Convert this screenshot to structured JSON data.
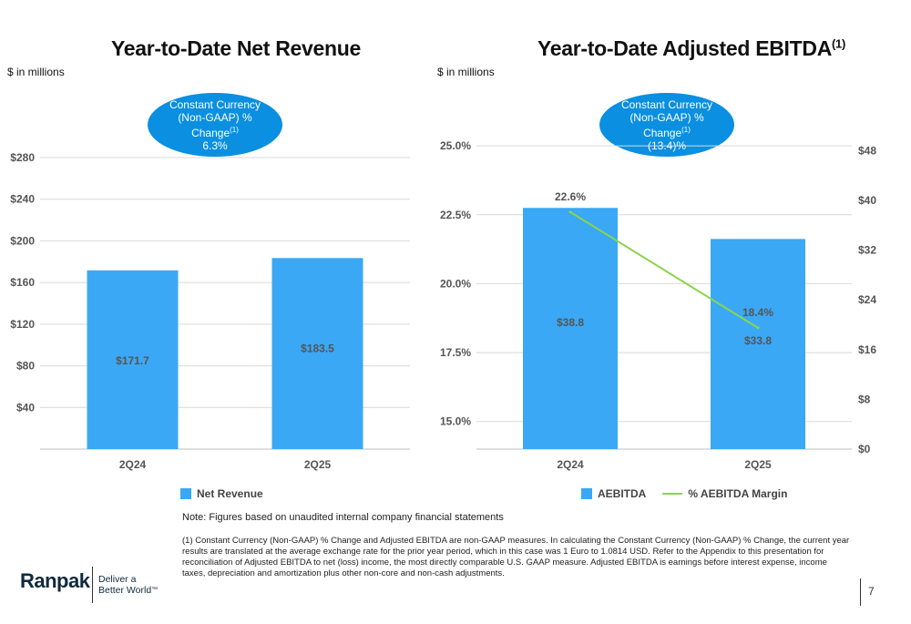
{
  "left": {
    "title": "Year-to-Date Net Revenue",
    "units": "$ in millions",
    "bubble": {
      "line1": "Constant Currency",
      "line2": "(Non-GAAP) %",
      "line3": "Change",
      "sup": "(1)",
      "value": "6.3%"
    },
    "legend": "Net Revenue"
  },
  "right": {
    "title": "Year-to-Date Adjusted EBITDA",
    "title_sup": "(1)",
    "units": "$ in millions",
    "bubble": {
      "line1": "Constant Currency",
      "line2": "(Non-GAAP) %",
      "line3": "Change",
      "sup": "(1)",
      "value": "(13.4)%"
    },
    "legend_bar": "AEBITDA",
    "legend_line": "% AEBITDA Margin"
  },
  "chart_data": [
    {
      "type": "bar",
      "title": "Year-to-Date Net Revenue",
      "categories": [
        "2Q24",
        "2Q25"
      ],
      "values": [
        171.7,
        183.5
      ],
      "value_labels": [
        "$171.7",
        "$183.5"
      ],
      "ylim": [
        0,
        280
      ],
      "yticks": [
        "$40",
        "$80",
        "$120",
        "$160",
        "$200",
        "$240",
        "$280"
      ],
      "ytick_values": [
        40,
        80,
        120,
        160,
        200,
        240,
        280
      ],
      "series": [
        {
          "name": "Net Revenue",
          "values": [
            171.7,
            183.5
          ]
        }
      ],
      "legend": "bottom",
      "grid": true
    },
    {
      "type": "bar",
      "title": "Year-to-Date Adjusted EBITDA",
      "categories": [
        "2Q24",
        "2Q25"
      ],
      "series": [
        {
          "name": "AEBITDA",
          "type": "bar",
          "axis": "right",
          "values": [
            38.8,
            33.8
          ],
          "labels": [
            "$38.8",
            "$33.8"
          ]
        },
        {
          "name": "% AEBITDA Margin",
          "type": "line",
          "axis": "left",
          "values": [
            22.6,
            18.4
          ],
          "labels": [
            "22.6%",
            "18.4%"
          ]
        }
      ],
      "left_axis": {
        "ylim": [
          14,
          25.5
        ],
        "ticks": [
          "15.0%",
          "17.5%",
          "20.0%",
          "22.5%",
          "25.0%"
        ],
        "tick_values": [
          15.0,
          17.5,
          20.0,
          22.5,
          25.0
        ]
      },
      "right_axis": {
        "ylim": [
          0,
          51
        ],
        "ticks": [
          "$0",
          "$8",
          "$16",
          "$24",
          "$32",
          "$40",
          "$48"
        ],
        "tick_values": [
          0,
          8,
          16,
          24,
          32,
          40,
          48
        ]
      },
      "legend": "bottom",
      "grid": true
    }
  ],
  "colors": {
    "bar": "#3aa8f5",
    "line": "#8cd44d",
    "bubble": "#0b8fe0",
    "grid": "#d9d9d9"
  },
  "note": "Note: Figures based on unaudited internal company financial statements",
  "footnote": "(1) Constant Currency (Non-GAAP) % Change and Adjusted EBITDA are non-GAAP measures. In calculating the Constant Currency (Non-GAAP) % Change, the current year results are translated at the average exchange rate for the prior year period, which in this case was 1 Euro to 1.0814 USD. Refer to the Appendix to this presentation for reconciliation of Adjusted EBITDA to net (loss) income, the most directly comparable U.S. GAAP measure. Adjusted EBITDA is earnings before interest expense, income taxes, depreciation and amortization plus other non-core and non-cash adjustments.",
  "brand": {
    "name": "Ranpak",
    "tagline1": "Deliver a",
    "tagline2": "Better World",
    "tm": "™"
  },
  "page_number": "7"
}
